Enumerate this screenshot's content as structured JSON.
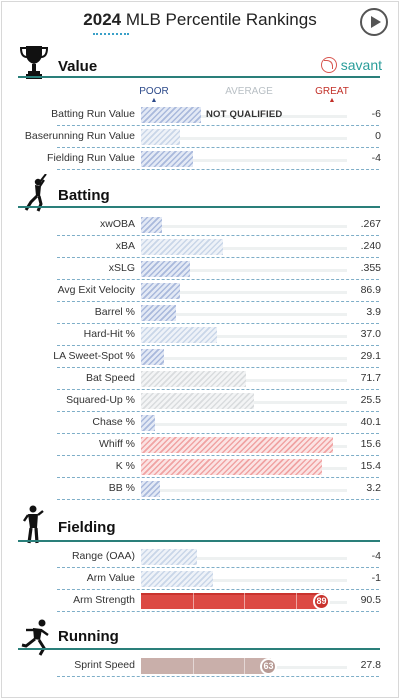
{
  "header": {
    "year": "2024",
    "title": "MLB Percentile Rankings"
  },
  "brand": {
    "label": "savant"
  },
  "scale": {
    "poor": "POOR",
    "average": "AVERAGE",
    "great": "GREAT"
  },
  "sections": {
    "value": "Value",
    "batting": "Batting",
    "fielding": "Fielding",
    "running": "Running"
  },
  "value_rows": [
    {
      "label": "Batting Run Value",
      "value": "-6",
      "percentile": 0.29,
      "style": "hatch-blue",
      "note": "NOT QUALIFIED"
    },
    {
      "label": "Baserunning Run Value",
      "value": "0",
      "percentile": 0.19,
      "style": "hatch-pale"
    },
    {
      "label": "Fielding Run Value",
      "value": "-4",
      "percentile": 0.25,
      "style": "hatch-blue"
    }
  ],
  "batting_rows": [
    {
      "label": "xwOBA",
      "value": ".267",
      "percentile": 0.1,
      "style": "hatch-blue"
    },
    {
      "label": "xBA",
      "value": ".240",
      "percentile": 0.4,
      "style": "hatch-pale"
    },
    {
      "label": "xSLG",
      "value": ".355",
      "percentile": 0.24,
      "style": "hatch-blue"
    },
    {
      "label": "Avg Exit Velocity",
      "value": "86.9",
      "percentile": 0.19,
      "style": "hatch-blue"
    },
    {
      "label": "Barrel %",
      "value": "3.9",
      "percentile": 0.17,
      "style": "hatch-blue"
    },
    {
      "label": "Hard-Hit %",
      "value": "37.0",
      "percentile": 0.37,
      "style": "hatch-pale"
    },
    {
      "label": "LA Sweet-Spot %",
      "value": "29.1",
      "percentile": 0.11,
      "style": "hatch-blue"
    },
    {
      "label": "Bat Speed",
      "value": "71.7",
      "percentile": 0.51,
      "style": "hatch-gray"
    },
    {
      "label": "Squared-Up %",
      "value": "25.5",
      "percentile": 0.55,
      "style": "hatch-gray"
    },
    {
      "label": "Chase %",
      "value": "40.1",
      "percentile": 0.07,
      "style": "hatch-blue"
    },
    {
      "label": "Whiff %",
      "value": "15.6",
      "percentile": 0.93,
      "style": "hatch-red"
    },
    {
      "label": "K %",
      "value": "15.4",
      "percentile": 0.88,
      "style": "hatch-red"
    },
    {
      "label": "BB %",
      "value": "3.2",
      "percentile": 0.09,
      "style": "hatch-blue"
    }
  ],
  "fielding_rows": [
    {
      "label": "Range (OAA)",
      "value": "-4",
      "percentile": 0.27,
      "style": "hatch-pale"
    },
    {
      "label": "Arm Value",
      "value": "-1",
      "percentile": 0.35,
      "style": "hatch-pale"
    },
    {
      "label": "Arm Strength",
      "value": "90.5",
      "percentile": 0.89,
      "style": "solid-red",
      "badge": "89",
      "badge_color": "red"
    }
  ],
  "running_rows": [
    {
      "label": "Sprint Speed",
      "value": "27.8",
      "percentile": 0.63,
      "style": "solid-tan",
      "badge": "63",
      "badge_color": "tan"
    }
  ]
}
